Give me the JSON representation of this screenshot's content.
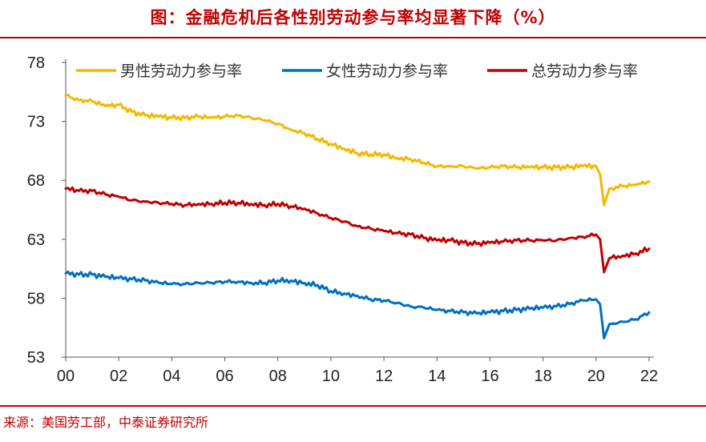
{
  "header": {
    "title": "图：金融危机后各性别劳动参与率均显著下降（%）"
  },
  "footer": {
    "source": "来源：美国劳工部，中泰证券研究所"
  },
  "chart_data": {
    "type": "line",
    "title": "图：金融危机后各性别劳动参与率均显著下降（%）",
    "xlabel": "",
    "ylabel": "",
    "x_ticks": [
      "00",
      "02",
      "04",
      "06",
      "08",
      "10",
      "12",
      "14",
      "16",
      "18",
      "20",
      "22"
    ],
    "y_ticks": [
      "53",
      "58",
      "63",
      "68",
      "73",
      "78"
    ],
    "xlim": [
      2000,
      2022
    ],
    "ylim": [
      53,
      78
    ],
    "legend_position": "top",
    "series": [
      {
        "name": "男性劳动力参与率",
        "color": "#f5b800",
        "x": [
          2000,
          2000.5,
          2001,
          2001.5,
          2002,
          2002.5,
          2003,
          2003.5,
          2004,
          2004.5,
          2005,
          2005.5,
          2006,
          2006.5,
          2007,
          2007.5,
          2008,
          2008.5,
          2009,
          2009.5,
          2010,
          2010.5,
          2011,
          2011.5,
          2012,
          2012.5,
          2013,
          2013.5,
          2014,
          2014.5,
          2015,
          2015.5,
          2016,
          2016.5,
          2017,
          2017.5,
          2018,
          2018.5,
          2019,
          2019.5,
          2020,
          2020.15,
          2020.3,
          2020.5,
          2021,
          2021.5,
          2022
        ],
        "values": [
          75.2,
          74.8,
          74.7,
          74.3,
          74.4,
          73.8,
          73.5,
          73.4,
          73.3,
          73.3,
          73.4,
          73.3,
          73.4,
          73.5,
          73.3,
          73.1,
          72.8,
          72.3,
          72.0,
          71.5,
          71.1,
          70.7,
          70.3,
          70.2,
          70.2,
          69.9,
          69.8,
          69.5,
          69.2,
          69.2,
          69.2,
          69.0,
          69.1,
          69.2,
          69.1,
          69.1,
          69.1,
          69.1,
          69.1,
          69.2,
          69.2,
          68.5,
          65.9,
          67.3,
          67.5,
          67.6,
          67.9
        ]
      },
      {
        "name": "女性劳动力参与率",
        "color": "#0070c0",
        "x": [
          2000,
          2000.5,
          2001,
          2001.5,
          2002,
          2002.5,
          2003,
          2003.5,
          2004,
          2004.5,
          2005,
          2005.5,
          2006,
          2006.5,
          2007,
          2007.5,
          2008,
          2008.5,
          2009,
          2009.5,
          2010,
          2010.5,
          2011,
          2011.5,
          2012,
          2012.5,
          2013,
          2013.5,
          2014,
          2014.5,
          2015,
          2015.5,
          2016,
          2016.5,
          2017,
          2017.5,
          2018,
          2018.5,
          2019,
          2019.5,
          2020,
          2020.15,
          2020.3,
          2020.5,
          2021,
          2021.5,
          2022
        ],
        "values": [
          60.1,
          60.0,
          60.0,
          59.8,
          59.7,
          59.6,
          59.5,
          59.3,
          59.2,
          59.2,
          59.3,
          59.3,
          59.4,
          59.4,
          59.3,
          59.3,
          59.5,
          59.5,
          59.3,
          59.1,
          58.6,
          58.4,
          58.2,
          57.9,
          57.8,
          57.6,
          57.3,
          57.2,
          57.0,
          56.9,
          56.8,
          56.7,
          56.8,
          56.9,
          57.0,
          57.1,
          57.2,
          57.3,
          57.5,
          57.8,
          57.9,
          57.5,
          54.6,
          55.8,
          56.0,
          56.2,
          56.8
        ]
      },
      {
        "name": "总劳动力参与率",
        "color": "#c00000",
        "x": [
          2000,
          2000.5,
          2001,
          2001.5,
          2002,
          2002.5,
          2003,
          2003.5,
          2004,
          2004.5,
          2005,
          2005.5,
          2006,
          2006.5,
          2007,
          2007.5,
          2008,
          2008.5,
          2009,
          2009.5,
          2010,
          2010.5,
          2011,
          2011.5,
          2012,
          2012.5,
          2013,
          2013.5,
          2014,
          2014.5,
          2015,
          2015.5,
          2016,
          2016.5,
          2017,
          2017.5,
          2018,
          2018.5,
          2019,
          2019.5,
          2020,
          2020.15,
          2020.3,
          2020.5,
          2021,
          2021.5,
          2022
        ],
        "values": [
          67.3,
          67.1,
          67.1,
          66.8,
          66.6,
          66.3,
          66.2,
          66.1,
          66.0,
          65.9,
          66.0,
          66.0,
          66.1,
          66.1,
          66.0,
          65.9,
          66.0,
          65.8,
          65.6,
          65.2,
          64.8,
          64.5,
          64.1,
          63.9,
          63.7,
          63.5,
          63.4,
          63.1,
          62.9,
          62.9,
          62.7,
          62.6,
          62.7,
          62.8,
          62.9,
          62.9,
          62.9,
          62.9,
          63.1,
          63.2,
          63.4,
          63.0,
          60.2,
          61.4,
          61.6,
          61.8,
          62.2
        ]
      }
    ]
  }
}
